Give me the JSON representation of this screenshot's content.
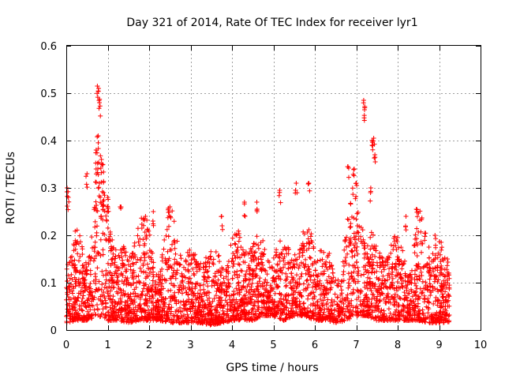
{
  "chart_data": {
    "type": "scatter",
    "title": "Day 321 of 2014, Rate Of TEC Index for receiver lyr1",
    "xlabel": "GPS time / hours",
    "ylabel": "ROTI / TECUs",
    "xlim": [
      0,
      10
    ],
    "ylim": [
      0,
      0.6
    ],
    "xticks": [
      "0",
      "1",
      "2",
      "3",
      "4",
      "5",
      "6",
      "7",
      "8",
      "9",
      "10"
    ],
    "yticks": [
      "0",
      "0.1",
      "0.2",
      "0.3",
      "0.4",
      "0.5",
      "0.6"
    ],
    "grid": true,
    "marker": "+",
    "color": "#ff0000",
    "data_x_range": [
      0,
      9.25
    ],
    "series": [
      {
        "name": "ROTI",
        "notable_points": [
          {
            "x": 0.02,
            "y": 0.3
          },
          {
            "x": 0.05,
            "y": 0.28
          },
          {
            "x": 0.75,
            "y": 0.515
          },
          {
            "x": 0.78,
            "y": 0.51
          },
          {
            "x": 0.8,
            "y": 0.48
          },
          {
            "x": 0.77,
            "y": 0.41
          },
          {
            "x": 0.72,
            "y": 0.38
          },
          {
            "x": 0.85,
            "y": 0.36
          },
          {
            "x": 0.72,
            "y": 0.34
          },
          {
            "x": 0.8,
            "y": 0.31
          },
          {
            "x": 0.9,
            "y": 0.29
          },
          {
            "x": 0.5,
            "y": 0.33
          },
          {
            "x": 1.0,
            "y": 0.28
          },
          {
            "x": 1.3,
            "y": 0.26
          },
          {
            "x": 2.1,
            "y": 0.25
          },
          {
            "x": 2.5,
            "y": 0.26
          },
          {
            "x": 3.75,
            "y": 0.24
          },
          {
            "x": 4.3,
            "y": 0.27
          },
          {
            "x": 4.6,
            "y": 0.27
          },
          {
            "x": 5.15,
            "y": 0.295
          },
          {
            "x": 5.55,
            "y": 0.31
          },
          {
            "x": 5.85,
            "y": 0.31
          },
          {
            "x": 6.8,
            "y": 0.345
          },
          {
            "x": 6.95,
            "y": 0.34
          },
          {
            "x": 7.0,
            "y": 0.31
          },
          {
            "x": 7.18,
            "y": 0.485
          },
          {
            "x": 7.2,
            "y": 0.465
          },
          {
            "x": 7.38,
            "y": 0.4
          },
          {
            "x": 7.42,
            "y": 0.405
          },
          {
            "x": 7.45,
            "y": 0.37
          },
          {
            "x": 7.35,
            "y": 0.3
          },
          {
            "x": 8.2,
            "y": 0.24
          },
          {
            "x": 8.45,
            "y": 0.255
          },
          {
            "x": 8.9,
            "y": 0.2
          },
          {
            "x": 9.2,
            "y": 0.15
          }
        ],
        "envelope": [
          {
            "x": 0.0,
            "ymin": 0.015,
            "ymax": 0.13
          },
          {
            "x": 0.25,
            "ymin": 0.02,
            "ymax": 0.2
          },
          {
            "x": 0.5,
            "ymin": 0.02,
            "ymax": 0.2
          },
          {
            "x": 0.75,
            "ymin": 0.03,
            "ymax": 0.3
          },
          {
            "x": 1.0,
            "ymin": 0.02,
            "ymax": 0.26
          },
          {
            "x": 1.25,
            "ymin": 0.02,
            "ymax": 0.2
          },
          {
            "x": 1.5,
            "ymin": 0.015,
            "ymax": 0.16
          },
          {
            "x": 1.75,
            "ymin": 0.02,
            "ymax": 0.21
          },
          {
            "x": 2.0,
            "ymin": 0.02,
            "ymax": 0.2
          },
          {
            "x": 2.25,
            "ymin": 0.02,
            "ymax": 0.17
          },
          {
            "x": 2.5,
            "ymin": 0.015,
            "ymax": 0.22
          },
          {
            "x": 2.75,
            "ymin": 0.015,
            "ymax": 0.17
          },
          {
            "x": 3.0,
            "ymin": 0.015,
            "ymax": 0.17
          },
          {
            "x": 3.25,
            "ymin": 0.015,
            "ymax": 0.17
          },
          {
            "x": 3.5,
            "ymin": 0.01,
            "ymax": 0.14
          },
          {
            "x": 3.75,
            "ymin": 0.015,
            "ymax": 0.15
          },
          {
            "x": 4.0,
            "ymin": 0.02,
            "ymax": 0.24
          },
          {
            "x": 4.25,
            "ymin": 0.02,
            "ymax": 0.15
          },
          {
            "x": 4.5,
            "ymin": 0.02,
            "ymax": 0.18
          },
          {
            "x": 4.75,
            "ymin": 0.03,
            "ymax": 0.2
          },
          {
            "x": 5.0,
            "ymin": 0.03,
            "ymax": 0.18
          },
          {
            "x": 5.25,
            "ymin": 0.02,
            "ymax": 0.15
          },
          {
            "x": 5.5,
            "ymin": 0.03,
            "ymax": 0.2
          },
          {
            "x": 5.75,
            "ymin": 0.03,
            "ymax": 0.24
          },
          {
            "x": 6.0,
            "ymin": 0.02,
            "ymax": 0.18
          },
          {
            "x": 6.25,
            "ymin": 0.02,
            "ymax": 0.15
          },
          {
            "x": 6.5,
            "ymin": 0.015,
            "ymax": 0.14
          },
          {
            "x": 6.75,
            "ymin": 0.02,
            "ymax": 0.22
          },
          {
            "x": 7.0,
            "ymin": 0.03,
            "ymax": 0.24
          },
          {
            "x": 7.25,
            "ymin": 0.03,
            "ymax": 0.25
          },
          {
            "x": 7.5,
            "ymin": 0.02,
            "ymax": 0.18
          },
          {
            "x": 7.75,
            "ymin": 0.02,
            "ymax": 0.16
          },
          {
            "x": 8.0,
            "ymin": 0.02,
            "ymax": 0.16
          },
          {
            "x": 8.25,
            "ymin": 0.02,
            "ymax": 0.2
          },
          {
            "x": 8.5,
            "ymin": 0.02,
            "ymax": 0.22
          },
          {
            "x": 8.75,
            "ymin": 0.015,
            "ymax": 0.17
          },
          {
            "x": 9.0,
            "ymin": 0.015,
            "ymax": 0.19
          },
          {
            "x": 9.25,
            "ymin": 0.015,
            "ymax": 0.14
          }
        ]
      }
    ]
  }
}
